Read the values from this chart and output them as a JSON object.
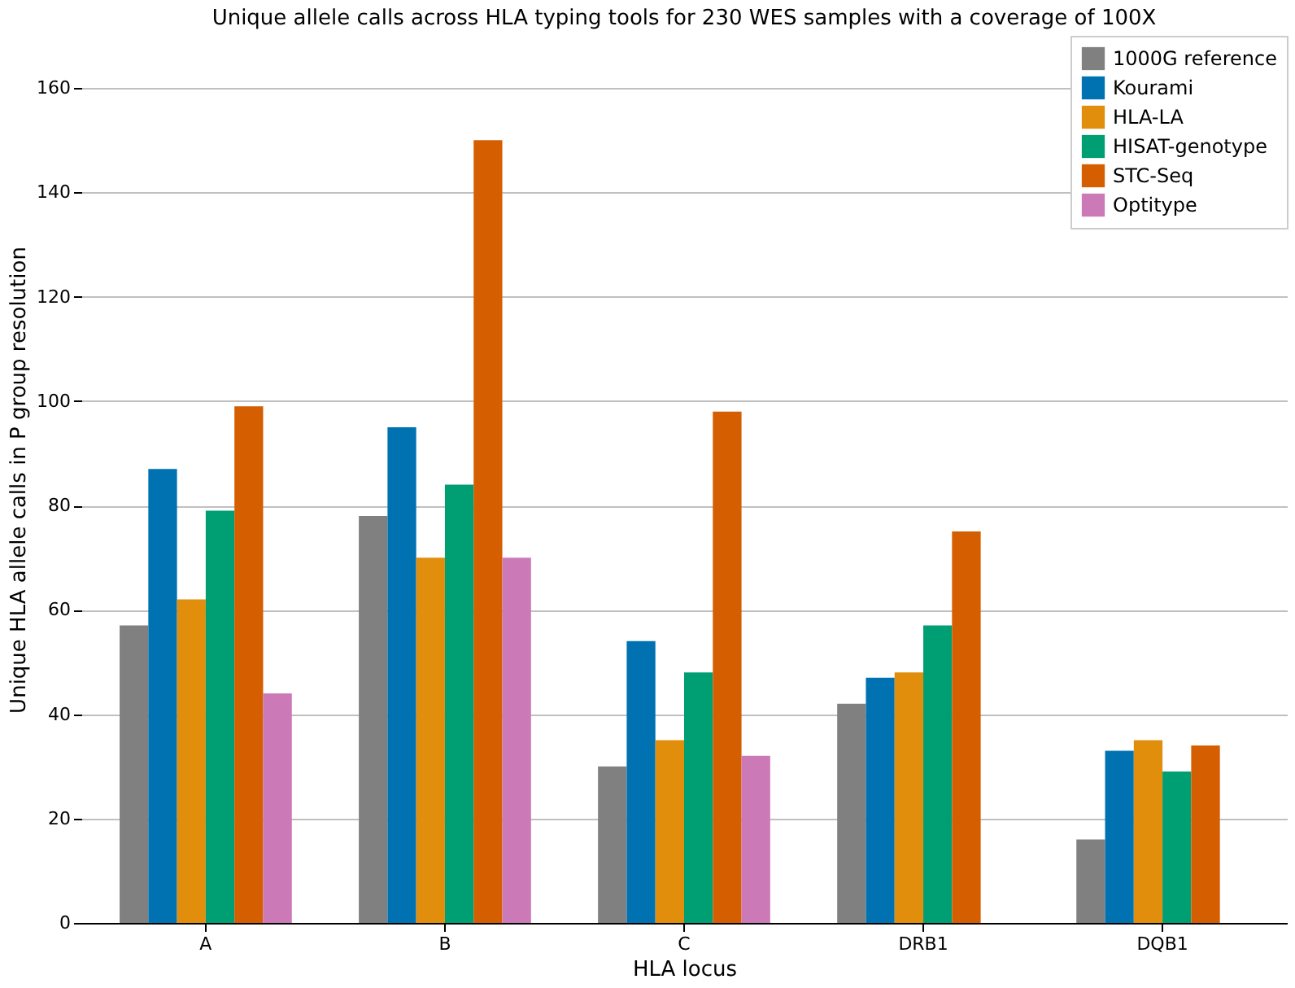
{
  "chart_data": {
    "type": "bar",
    "title": "Unique allele calls across HLA typing tools for 230 WES samples with a coverage of 100X",
    "xlabel": "HLA locus",
    "ylabel": "Unique HLA allele calls in P group resolution",
    "categories": [
      "A",
      "B",
      "C",
      "DRB1",
      "DQB1"
    ],
    "series": [
      {
        "name": "1000G reference",
        "color": "#808080",
        "values": [
          57,
          78,
          30,
          42,
          16
        ]
      },
      {
        "name": "Kourami",
        "color": "#0072b2",
        "values": [
          87,
          95,
          54,
          47,
          33
        ]
      },
      {
        "name": "HLA-LA",
        "color": "#e08e0b",
        "values": [
          62,
          70,
          35,
          48,
          35
        ]
      },
      {
        "name": "HISAT-genotype",
        "color": "#009e73",
        "values": [
          79,
          84,
          48,
          57,
          29
        ]
      },
      {
        "name": "STC-Seq",
        "color": "#d55e00",
        "values": [
          99,
          150,
          98,
          75,
          34
        ]
      },
      {
        "name": "Optitype",
        "color": "#cc79b7",
        "values": [
          44,
          70,
          32,
          null,
          null
        ]
      }
    ],
    "ylim": [
      0,
      170
    ],
    "yticks": [
      0,
      20,
      40,
      60,
      80,
      100,
      120,
      140,
      160
    ],
    "grid": "y",
    "legend": "top right"
  }
}
